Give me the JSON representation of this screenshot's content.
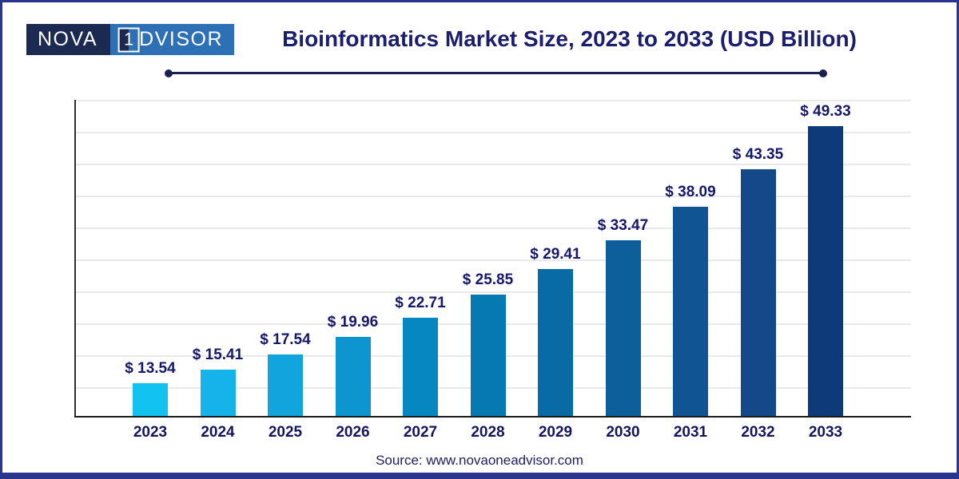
{
  "logo": {
    "part1": "NOVA",
    "middle": "1",
    "part2": "ADVISOR"
  },
  "header": {
    "title": "Bioinformatics Market Size, 2023 to 2033 (USD Billion)"
  },
  "chart_data": {
    "type": "bar",
    "title": "Bioinformatics Market Size, 2023 to 2033 (USD Billion)",
    "categories": [
      "2023",
      "2024",
      "2025",
      "2026",
      "2027",
      "2028",
      "2029",
      "2030",
      "2031",
      "2032",
      "2033"
    ],
    "values": [
      13.54,
      15.41,
      17.54,
      19.96,
      22.71,
      25.85,
      29.41,
      33.47,
      38.09,
      43.35,
      49.33
    ],
    "value_labels": [
      "$ 13.54",
      "$ 15.41",
      "$ 17.54",
      "$ 19.96",
      "$ 22.71",
      "$ 25.85",
      "$ 29.41",
      "$ 33.47",
      "$ 38.09",
      "$ 43.35",
      "$ 49.33"
    ],
    "unit": "USD Billion",
    "xlabel": "",
    "ylabel": "",
    "ylim": [
      9,
      53
    ],
    "grid": "horizontal",
    "legend": "none",
    "bar_colors": [
      "#12C3F2",
      "#15B3E9",
      "#12A4DC",
      "#0D95CF",
      "#0787C1",
      "#0679B3",
      "#086BA6",
      "#0C5F9A",
      "#115494",
      "#134889",
      "#0E3A7A"
    ]
  },
  "footer": {
    "source": "Source: www.novaoneadvisor.com"
  },
  "colors": {
    "border": "#2b3590",
    "title_text": "#1b1d6e",
    "label_text": "#14176b",
    "logo_dark": "#1c2a52",
    "logo_blue": "#2d70b5",
    "rule": "#1a2152",
    "gridline": "#e9e9e9"
  }
}
